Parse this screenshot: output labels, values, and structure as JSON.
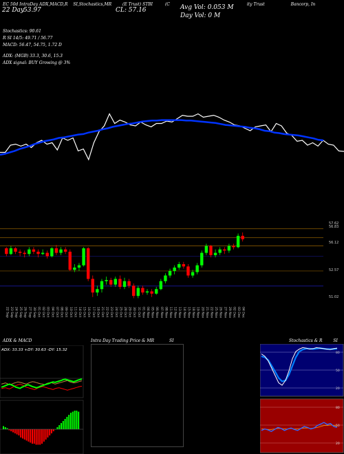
{
  "header": {
    "line1": [
      "EC 50d IntraDay ADX,MACD,R",
      "SI,Stochastics,MR",
      "(E Trust) STBI",
      "(C",
      "ity Trust",
      "Bancorp, In"
    ],
    "vol_avg": "Avg Vol: 0.053 M",
    "vol_day": "Day Vol: 0 M",
    "day_label": "22 Day",
    "day_value": "53.97",
    "cl_value": "CL: 57.16",
    "stoch": "Stochastics: 90.61",
    "rsi": "R       SI 14/5: 49.71 / 56.77",
    "macd": "MACD: 56.47, 54.75, 1.72  D",
    "adx": "ADX:              (MGB) 33.3,  30.6,  15.3",
    "adx_signal": "ADX  signal:                BUY Growing @ 3%"
  },
  "panels": {
    "adx_title": "ADX  & MACD",
    "adx_values": "ADX: 33.33 +DY: 30.63 -DY: 15.32",
    "intraday_title": "Intra  Day Trading Price  & MR",
    "intraday_title2": "SI",
    "stoch_title": "Stochastics & R",
    "stoch_title2": "SI"
  },
  "colors": {
    "up": "#00ff00",
    "down": "#ff0000",
    "ma": "#0033ff",
    "price": "#ffffff",
    "grid_orange": "#8a5a00",
    "grid_blue": "#1a1aa0",
    "stoch_bg": "#000070",
    "rsi_bg": "#990000"
  },
  "chart_data": [
    {
      "type": "line",
      "name": "price-overlay",
      "series": [
        {
          "name": "close",
          "values": [
            155,
            155,
            170,
            172,
            168,
            172,
            165,
            175,
            180,
            172,
            175,
            160,
            185,
            180,
            185,
            158,
            162,
            140,
            175,
            198,
            210,
            235,
            215,
            222,
            218,
            212,
            210,
            218,
            212,
            208,
            215,
            215,
            220,
            218,
            225,
            232,
            230,
            230,
            235,
            228,
            230,
            232,
            228,
            222,
            218,
            212,
            210,
            205,
            200,
            208,
            210,
            212,
            198,
            215,
            210,
            195,
            190,
            178,
            180,
            170,
            175,
            168,
            180,
            172,
            170,
            158,
            157
          ]
        },
        {
          "name": "ma",
          "values": [
            150,
            152,
            155,
            158,
            162,
            165,
            168,
            172,
            175,
            178,
            180,
            182,
            185,
            186,
            188,
            190,
            192,
            193,
            196,
            198,
            200,
            203,
            205,
            208,
            210,
            212,
            214,
            215,
            217,
            219,
            220,
            221,
            221,
            222,
            222,
            222,
            222,
            222,
            221,
            221,
            220,
            219,
            218,
            217,
            216,
            214,
            212,
            211,
            210,
            209,
            208,
            206,
            205,
            203,
            200,
            199,
            196,
            195,
            193,
            192,
            191,
            190,
            188,
            186,
            184,
            181,
            180
          ]
        }
      ],
      "ylim": [
        100,
        300
      ]
    },
    {
      "type": "candlestick",
      "name": "daily-candles",
      "price_labels": [
        "57.62",
        "56.83",
        "56.12",
        "52.57",
        "51.02",
        "51.02"
      ],
      "price_levels": [
        57.62,
        56.83,
        56.12,
        52.57,
        51.02
      ],
      "categories": [
        "22 Sep",
        "23 Sep",
        "24 Sep",
        "25 Sep",
        "26 Sep",
        "27 Sep",
        "30 Sep",
        "01 Oct",
        "02 Oct",
        "03 Oct",
        "04 Oct",
        "07 Oct",
        "08 Oct",
        "09 Oct",
        "10 Oct",
        "11 Oct",
        "14 Oct",
        "15 Oct",
        "16 Oct",
        "17 Oct",
        "18 Oct",
        "21 Oct",
        "22 Oct",
        "23 Oct",
        "24 Oct",
        "25 Oct",
        "28 Oct",
        "29 Oct",
        "30 Oct",
        "31 Oct",
        "01 Nov",
        "04 Nov",
        "05 Nov",
        "06 Nov",
        "07 Nov",
        "08 Nov",
        "11 Nov",
        "12 Nov",
        "13 Nov",
        "14 Nov",
        "15 Nov",
        "18 Nov",
        "19 Nov",
        "20 Nov",
        "21 Nov",
        "22 Nov",
        "25 Nov",
        "26 Nov",
        "27 Nov",
        "29 Nov",
        "02 Dec",
        "03 Dec",
        "04 Dec"
      ],
      "candles": [
        [
          55.9,
          55.4,
          56.0,
          55.2
        ],
        [
          55.4,
          55.9,
          56.1,
          55.3
        ],
        [
          55.9,
          55.6,
          56.0,
          55.4
        ],
        [
          55.6,
          55.5,
          55.8,
          55.2
        ],
        [
          55.5,
          55.4,
          55.7,
          55.1
        ],
        [
          55.4,
          55.8,
          56.0,
          55.2
        ],
        [
          55.8,
          55.6,
          56.0,
          55.4
        ],
        [
          55.6,
          55.4,
          55.8,
          55.1
        ],
        [
          55.4,
          55.5,
          55.8,
          55.3
        ],
        [
          55.5,
          55.2,
          55.7,
          55.0
        ],
        [
          55.2,
          55.9,
          56.0,
          55.1
        ],
        [
          55.9,
          55.5,
          56.2,
          55.3
        ],
        [
          55.5,
          55.8,
          56.0,
          55.3
        ],
        [
          55.8,
          55.6,
          56.0,
          55.4
        ],
        [
          55.6,
          54.0,
          55.8,
          53.9
        ],
        [
          54.0,
          54.2,
          54.5,
          53.8
        ],
        [
          54.2,
          54.4,
          54.6,
          53.9
        ],
        [
          54.4,
          55.9,
          56.0,
          54.3
        ],
        [
          55.9,
          53.2,
          56.0,
          53.0
        ],
        [
          53.2,
          52.0,
          53.5,
          51.6
        ],
        [
          52.0,
          52.3,
          52.6,
          51.7
        ],
        [
          52.3,
          53.0,
          53.2,
          52.0
        ],
        [
          53.0,
          53.1,
          53.4,
          52.7
        ],
        [
          53.1,
          52.7,
          53.3,
          52.5
        ],
        [
          52.7,
          53.2,
          53.4,
          52.5
        ],
        [
          53.2,
          52.5,
          53.5,
          52.3
        ],
        [
          52.5,
          53.0,
          53.3,
          52.3
        ],
        [
          53.0,
          52.6,
          53.2,
          52.4
        ],
        [
          52.6,
          51.7,
          52.8,
          51.5
        ],
        [
          51.7,
          52.4,
          52.6,
          51.5
        ],
        [
          52.4,
          52.0,
          52.6,
          51.8
        ],
        [
          52.0,
          52.1,
          52.3,
          51.8
        ],
        [
          52.1,
          51.9,
          52.3,
          51.6
        ],
        [
          51.9,
          52.3,
          52.5,
          51.8
        ],
        [
          52.3,
          53.0,
          53.2,
          52.2
        ],
        [
          53.0,
          53.5,
          53.7,
          52.8
        ],
        [
          53.5,
          53.9,
          54.1,
          53.3
        ],
        [
          53.9,
          54.2,
          54.4,
          53.6
        ],
        [
          54.2,
          54.5,
          54.7,
          54.0
        ],
        [
          54.5,
          54.3,
          54.7,
          54.1
        ],
        [
          54.3,
          53.5,
          54.5,
          53.3
        ],
        [
          53.5,
          53.8,
          54.0,
          53.3
        ],
        [
          53.8,
          54.4,
          54.6,
          53.6
        ],
        [
          54.4,
          55.5,
          55.7,
          54.2
        ],
        [
          55.5,
          56.1,
          56.3,
          55.3
        ],
        [
          56.1,
          55.3,
          56.2,
          55.1
        ],
        [
          55.3,
          55.5,
          55.8,
          55.1
        ],
        [
          55.5,
          55.8,
          56.0,
          55.3
        ],
        [
          55.8,
          55.7,
          56.0,
          55.4
        ],
        [
          55.7,
          56.1,
          56.3,
          55.5
        ],
        [
          56.1,
          56.0,
          56.3,
          55.8
        ],
        [
          56.0,
          57.0,
          57.2,
          55.9
        ],
        [
          57.0,
          56.7,
          57.3,
          56.5
        ]
      ]
    },
    {
      "type": "line",
      "name": "adx-panel",
      "series": [
        {
          "name": "ADX",
          "values": [
            40,
            42,
            44,
            41,
            38,
            40,
            43,
            45,
            47,
            46,
            44,
            42,
            40,
            43,
            46,
            48,
            47,
            45,
            43,
            41,
            40,
            38,
            42,
            44,
            45,
            43,
            40,
            42,
            44,
            46,
            48,
            50,
            52,
            48,
            46,
            44,
            45,
            47,
            49,
            51
          ]
        },
        {
          "name": "+DY",
          "values": [
            30,
            32,
            35,
            38,
            40,
            37,
            34,
            30,
            28,
            26,
            30,
            33,
            36,
            38,
            35,
            32,
            30,
            28,
            30,
            33,
            35,
            38,
            40,
            42,
            45,
            47,
            46,
            48,
            50,
            52,
            55,
            56,
            54,
            52,
            50,
            48,
            50,
            53,
            55,
            57
          ]
        },
        {
          "name": "-DY",
          "values": [
            25,
            27,
            28,
            26,
            24,
            28,
            32,
            35,
            38,
            40,
            37,
            34,
            30,
            28,
            26,
            24,
            22,
            25,
            28,
            30,
            32,
            30,
            28,
            26,
            24,
            22,
            25,
            27,
            28,
            26,
            24,
            22,
            20,
            22,
            24,
            26,
            28,
            30,
            32,
            33
          ]
        }
      ],
      "ylim": [
        0,
        100
      ]
    },
    {
      "type": "bar",
      "name": "macd-histogram",
      "values": [
        3,
        2,
        1,
        -1,
        -2,
        -3,
        -4,
        -5,
        -6,
        -8,
        -9,
        -10,
        -11,
        -12,
        -13,
        -14,
        -14,
        -15,
        -15,
        -15,
        -14,
        -12,
        -10,
        -8,
        -6,
        -4,
        -2,
        0,
        2,
        4,
        6,
        8,
        10,
        12,
        14,
        16,
        17,
        18,
        18,
        17
      ],
      "ylim": [
        -20,
        20
      ]
    },
    {
      "type": "line",
      "name": "stochastics",
      "tick_labels": [
        "80",
        "50",
        "20"
      ],
      "series": [
        {
          "name": "K",
          "values": [
            85,
            80,
            70,
            55,
            40,
            25,
            20,
            30,
            50,
            75,
            90,
            95,
            98,
            97,
            95,
            96,
            98,
            97,
            96,
            95,
            94,
            96,
            97
          ]
        },
        {
          "name": "D",
          "values": [
            80,
            78,
            72,
            60,
            48,
            35,
            28,
            30,
            42,
            60,
            78,
            90,
            94,
            96,
            96,
            95,
            96,
            97,
            96,
            95,
            95,
            95,
            96
          ]
        }
      ],
      "ylim": [
        0,
        100
      ]
    },
    {
      "type": "line",
      "name": "rsi",
      "tick_labels": [
        "80",
        "50",
        "20"
      ],
      "series": [
        {
          "name": "RSI",
          "values": [
            42,
            45,
            43,
            40,
            44,
            48,
            46,
            42,
            45,
            47,
            44,
            42,
            46,
            50,
            48,
            45,
            47,
            52,
            55,
            58,
            54,
            56,
            50,
            48
          ]
        },
        {
          "name": "signal",
          "values": [
            45,
            45,
            44,
            44,
            45,
            46,
            46,
            45,
            45,
            46,
            45,
            45,
            46,
            47,
            47,
            46,
            47,
            48,
            50,
            52,
            52,
            53,
            52,
            51
          ]
        }
      ],
      "ylim": [
        0,
        100
      ]
    }
  ]
}
